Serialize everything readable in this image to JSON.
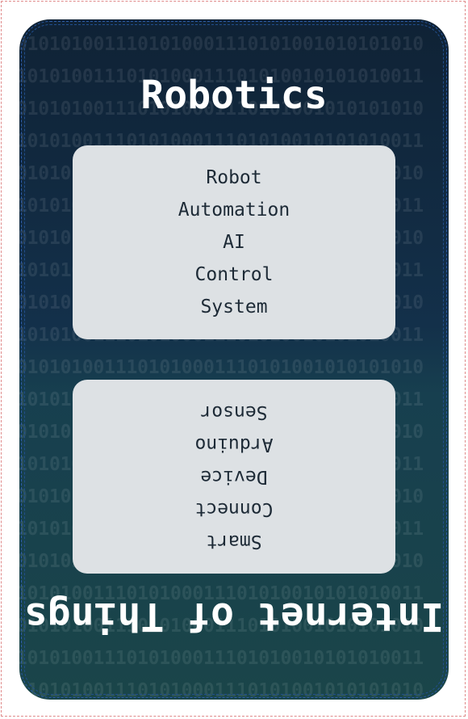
{
  "card_top": {
    "title": "Robotics",
    "items": [
      "Robot",
      "Automation",
      "AI",
      "Control",
      "System"
    ]
  },
  "card_bottom": {
    "title": "Internet of Things",
    "items": [
      "Smart",
      "Connect",
      "Device",
      "Arduino",
      "Sensor"
    ]
  },
  "background": {
    "binary_pattern_a": "0101010011101010001110101001010101010",
    "binary_pattern_b": "1010100111010100011101010010101010011"
  },
  "colors": {
    "card_top": "#0f2235",
    "card_bottom": "#1a4549",
    "panel": "#dde1e4",
    "title": "#ffffff",
    "item_text": "#1d2a36"
  }
}
